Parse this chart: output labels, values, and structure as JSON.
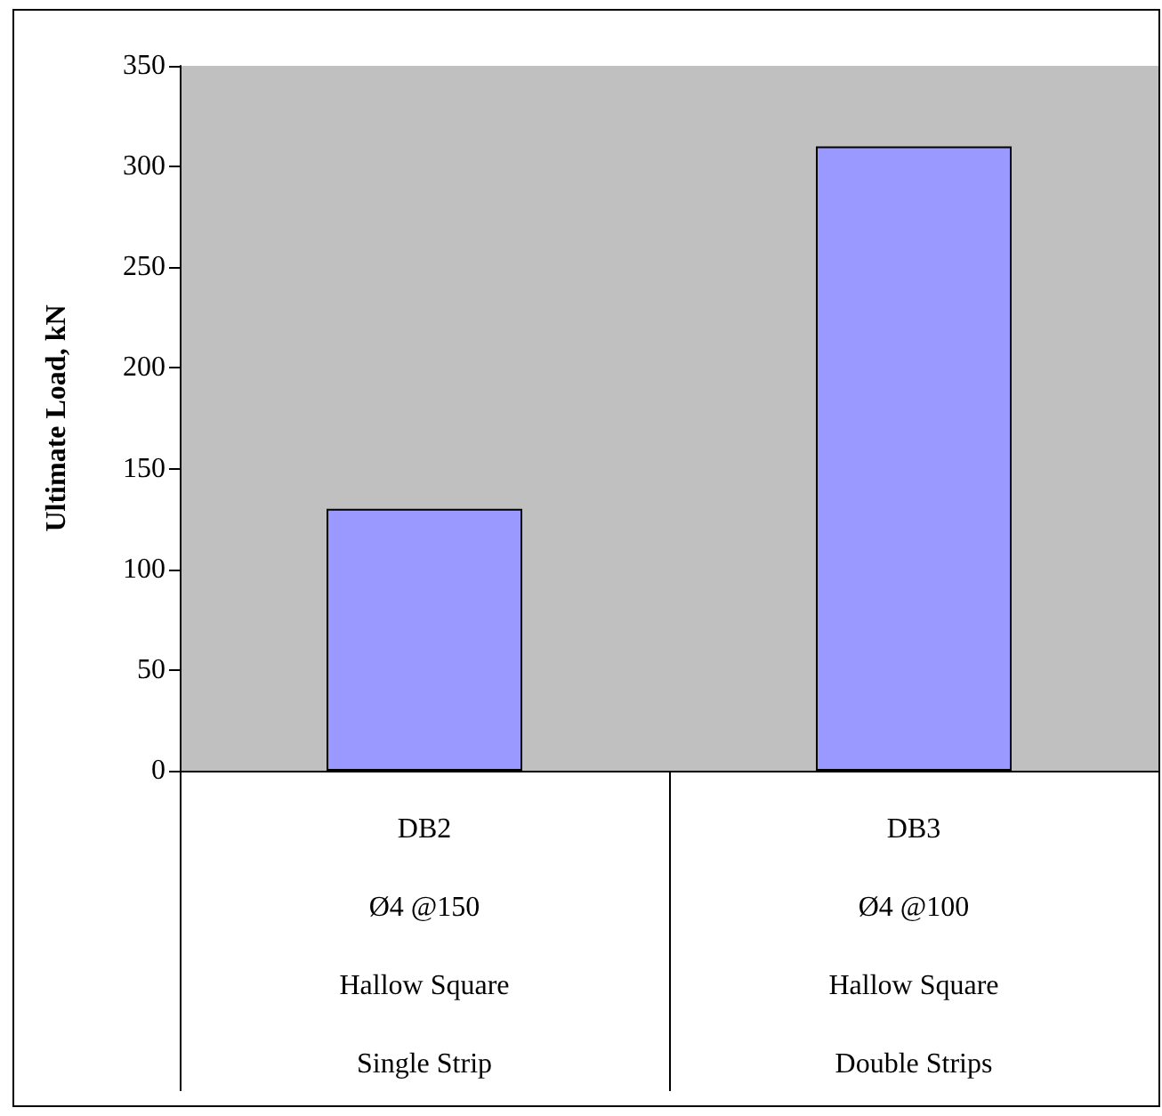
{
  "chart_data": {
    "type": "bar",
    "ylabel": "Ultimate Load, kN",
    "categories": [
      "DB2\nØ4 @150\nHallow Square\nSingle Strip",
      "DB3\nØ4 @100\nHallow Square\nDouble Strips"
    ],
    "values": [
      130,
      310
    ],
    "color": "#9999ff",
    "ylim": [
      0,
      350
    ],
    "yticks": [
      0,
      50,
      100,
      150,
      200,
      250,
      300,
      350
    ],
    "grid": false
  }
}
